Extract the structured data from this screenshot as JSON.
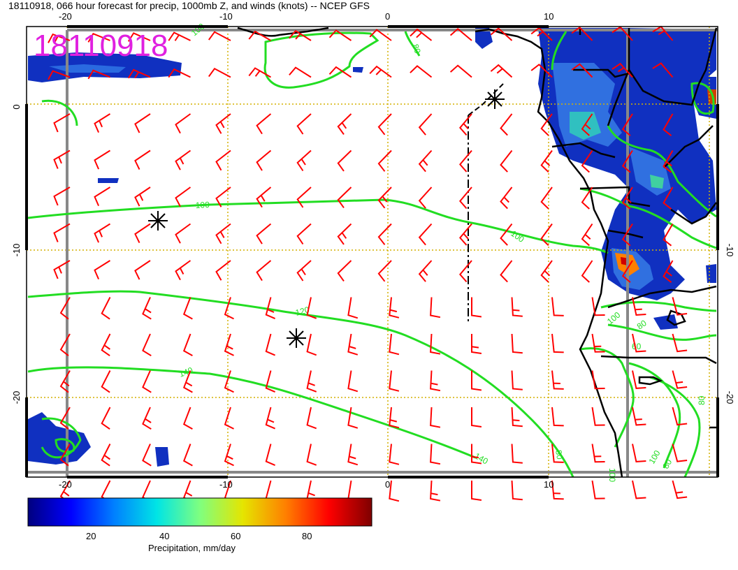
{
  "title": "18110918, 066 hour forecast for precip, 1000mb Z, and winds (knots) -- NCEP GFS",
  "datetime_stamp": "18110918",
  "axes": {
    "top_ticks": [
      "-20",
      "-10",
      "0",
      "10"
    ],
    "bottom_ticks": [
      "-20",
      "-10",
      "0",
      "10"
    ],
    "left_ticks": [
      "0",
      "-10",
      "-20"
    ],
    "right_ticks": [
      "-10",
      "-20"
    ]
  },
  "contour_labels": [
    "100",
    "80",
    "100",
    "100",
    "120",
    "140",
    "140",
    "100",
    "100",
    "60",
    "80",
    "80",
    "100",
    "80",
    "100",
    "80"
  ],
  "colorbar": {
    "label": "Precipitation, mm/day",
    "ticks": [
      "20",
      "40",
      "60",
      "80"
    ],
    "colors": [
      "#00007f",
      "#0000ff",
      "#007fff",
      "#00e5e5",
      "#7fff7f",
      "#e5e500",
      "#ff7f00",
      "#ff0000",
      "#7f0000"
    ]
  },
  "colors": {
    "contour": "#22dd22",
    "wind_barb": "#ff0000",
    "coast": "#000000",
    "grid": "#d4b000",
    "border_frame": "#888888"
  }
}
